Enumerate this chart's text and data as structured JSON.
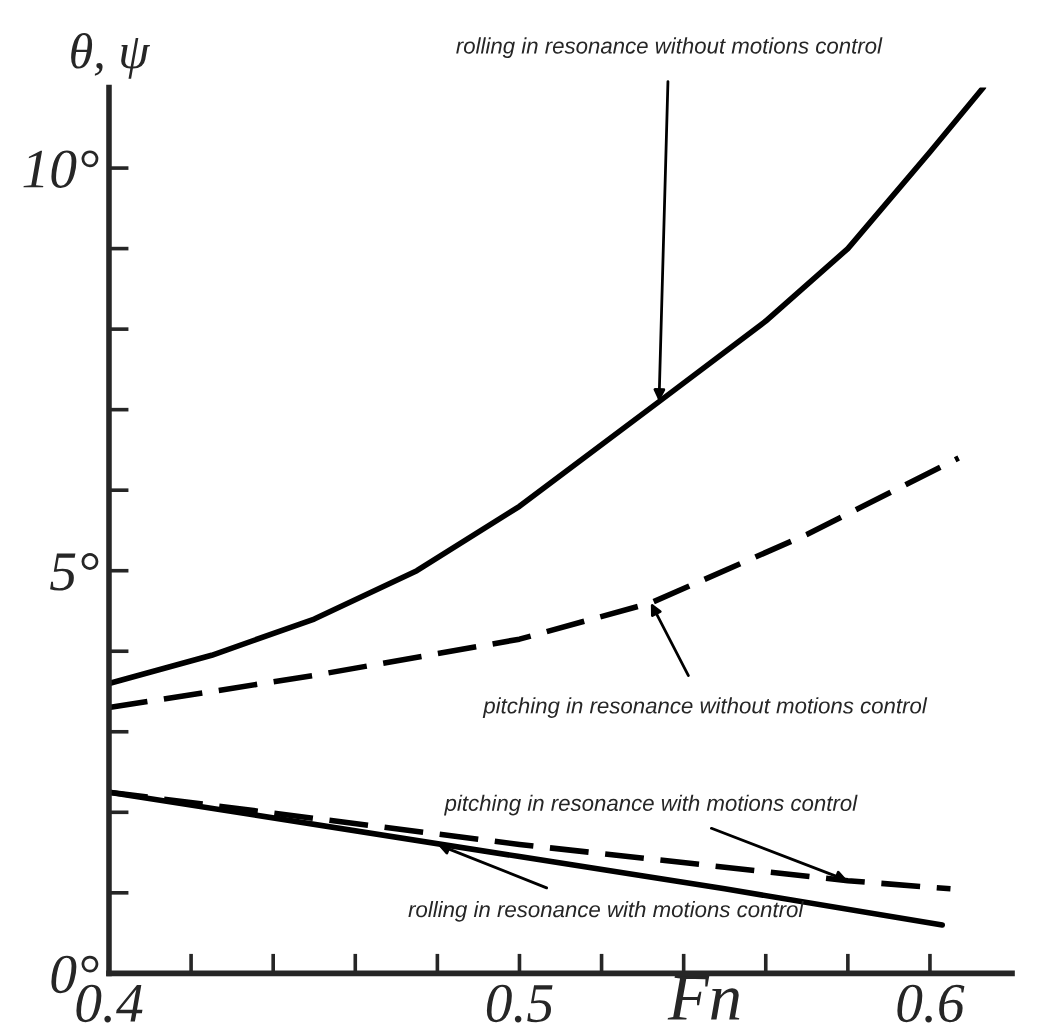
{
  "chart_data": {
    "type": "line",
    "xlabel": "Fn",
    "ylabel": "θ, ψ",
    "series": [
      {
        "color": "#000000",
        "line_style": "solid",
        "x": [
          0.4,
          0.425,
          0.45,
          0.475,
          0.5,
          0.534,
          0.56,
          0.58,
          0.6,
          0.613
        ],
        "values": [
          3.6,
          3.95,
          4.4,
          5.0,
          5.8,
          7.1,
          8.1,
          9.0,
          10.2,
          11.0
        ]
      },
      {
        "color": "#000000",
        "line_style": "dashed",
        "x": [
          0.4,
          0.45,
          0.5,
          0.532,
          0.57,
          0.607
        ],
        "values": [
          3.3,
          3.7,
          4.15,
          4.6,
          5.45,
          6.4
        ]
      },
      {
        "color": "#000000",
        "line_style": "dashed",
        "x": [
          0.4,
          0.5,
          0.58,
          0.605
        ],
        "values": [
          2.25,
          1.6,
          1.15,
          1.05
        ]
      },
      {
        "color": "#000000",
        "line_style": "solid",
        "x": [
          0.4,
          0.5,
          0.55,
          0.603
        ],
        "values": [
          2.25,
          1.45,
          1.05,
          0.6
        ]
      }
    ],
    "annotations": [
      {
        "text": "rolling in resonance without motions control",
        "x": 0.534,
        "y": 7.1
      },
      {
        "text": "pitching in resonance without motions control",
        "x": 0.532,
        "y": 4.6
      },
      {
        "text": "pitching in resonance with motions control",
        "x": 0.58,
        "y": 1.15
      },
      {
        "text": "rolling in resonance with motions control",
        "x": 0.48,
        "y": 1.6
      }
    ],
    "xlim": [
      0.4,
      0.62
    ],
    "ylim": [
      0,
      11
    ],
    "xticks": [
      0.4,
      {
        "value": 0.42,
        "label": null
      },
      {
        "value": 0.44,
        "label": null
      },
      {
        "value": 0.46,
        "label": null
      },
      {
        "value": 0.48,
        "label": null
      },
      0.5,
      {
        "value": 0.52,
        "label": null
      },
      {
        "value": 0.54,
        "label": null
      },
      {
        "value": 0.56,
        "label": null
      },
      {
        "value": 0.58,
        "label": null
      },
      0.6
    ],
    "yticks": [
      {
        "value": 0,
        "label": "0°"
      },
      {
        "value": 1,
        "label": null
      },
      {
        "value": 2,
        "label": null
      },
      {
        "value": 3,
        "label": null
      },
      {
        "value": 4,
        "label": null
      },
      {
        "value": 5,
        "label": "5°"
      },
      {
        "value": 6,
        "label": null
      },
      {
        "value": 7,
        "label": null
      },
      {
        "value": 8,
        "label": null
      },
      {
        "value": 9,
        "label": null
      },
      {
        "value": 10,
        "label": "10°"
      }
    ],
    "grid": false,
    "legend": false
  }
}
